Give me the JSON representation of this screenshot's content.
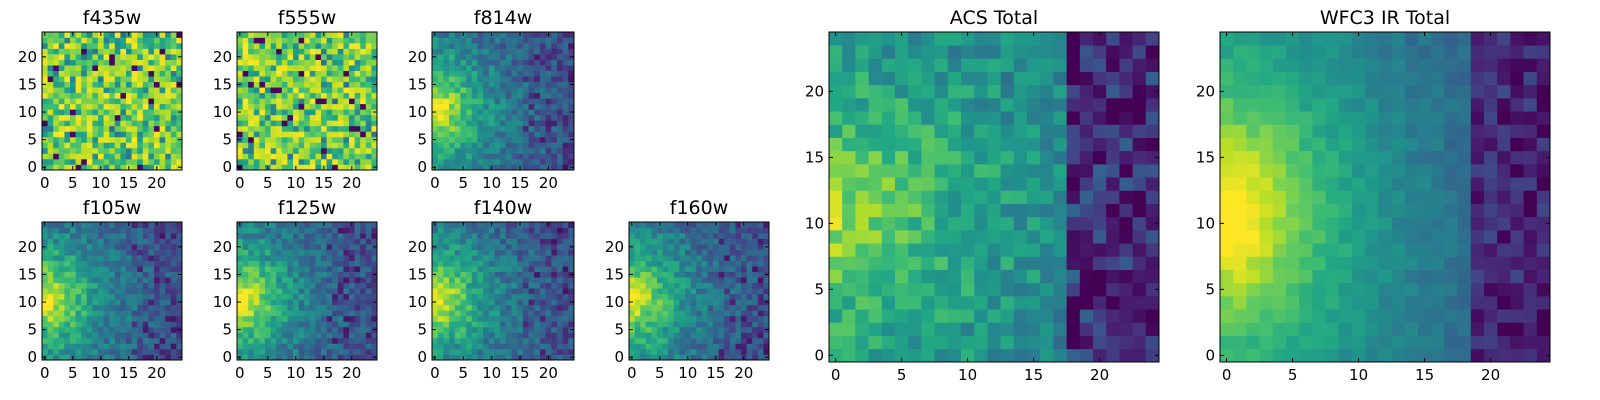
{
  "chart_data": [
    {
      "name": "f435w",
      "type": "heatmap",
      "title": "f435w",
      "xticks": [
        "0",
        "5",
        "10",
        "15",
        "20"
      ],
      "yticks": [
        "0",
        "5",
        "10",
        "15",
        "20"
      ],
      "grid_size": 25,
      "colormap": "viridis",
      "pattern": "noise"
    },
    {
      "name": "f555w",
      "type": "heatmap",
      "title": "f555w",
      "xticks": [
        "0",
        "5",
        "10",
        "15",
        "20"
      ],
      "yticks": [
        "0",
        "5",
        "10",
        "15",
        "20"
      ],
      "grid_size": 25,
      "colormap": "viridis",
      "pattern": "noise"
    },
    {
      "name": "f814w",
      "type": "heatmap",
      "title": "f814w",
      "xticks": [
        "0",
        "5",
        "10",
        "15",
        "20"
      ],
      "yticks": [
        "0",
        "5",
        "10",
        "15",
        "20"
      ],
      "grid_size": 25,
      "colormap": "viridis",
      "pattern": "left-bright"
    },
    {
      "name": "f105w",
      "type": "heatmap",
      "title": "f105w",
      "xticks": [
        "0",
        "5",
        "10",
        "15",
        "20"
      ],
      "yticks": [
        "0",
        "5",
        "10",
        "15",
        "20"
      ],
      "grid_size": 25,
      "colormap": "viridis",
      "pattern": "left-bright"
    },
    {
      "name": "f125w",
      "type": "heatmap",
      "title": "f125w",
      "xticks": [
        "0",
        "5",
        "10",
        "15",
        "20"
      ],
      "yticks": [
        "0",
        "5",
        "10",
        "15",
        "20"
      ],
      "grid_size": 25,
      "colormap": "viridis",
      "pattern": "left-bright"
    },
    {
      "name": "f140w",
      "type": "heatmap",
      "title": "f140w",
      "xticks": [
        "0",
        "5",
        "10",
        "15",
        "20"
      ],
      "yticks": [
        "0",
        "5",
        "10",
        "15",
        "20"
      ],
      "grid_size": 25,
      "colormap": "viridis",
      "pattern": "left-bright"
    },
    {
      "name": "f160w",
      "type": "heatmap",
      "title": "f160w",
      "xticks": [
        "0",
        "5",
        "10",
        "15",
        "20"
      ],
      "yticks": [
        "0",
        "5",
        "10",
        "15",
        "20"
      ],
      "grid_size": 25,
      "colormap": "viridis",
      "pattern": "left-bright"
    },
    {
      "name": "acs-total",
      "type": "heatmap",
      "title": "ACS Total",
      "xticks": [
        "0",
        "5",
        "10",
        "15",
        "20"
      ],
      "yticks": [
        "0",
        "5",
        "10",
        "15",
        "20"
      ],
      "grid_size": 25,
      "colormap": "viridis",
      "pattern": "acs"
    },
    {
      "name": "wfc3-ir-total",
      "type": "heatmap",
      "title": "WFC3 IR Total",
      "xticks": [
        "0",
        "5",
        "10",
        "15",
        "20"
      ],
      "yticks": [
        "0",
        "5",
        "10",
        "15",
        "20"
      ],
      "grid_size": 25,
      "colormap": "viridis",
      "pattern": "ir"
    }
  ]
}
